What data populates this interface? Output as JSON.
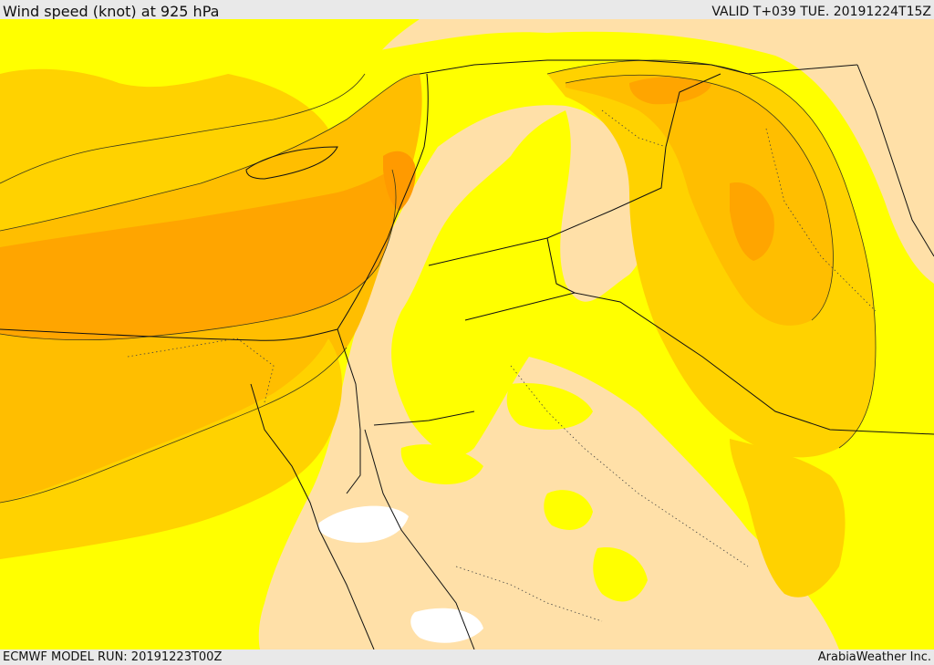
{
  "header": {
    "title": "Wind speed (knot) at 925 hPa",
    "valid_time": "VALID T+039 TUE. 20191224T15Z"
  },
  "footer": {
    "model_run": "ECMWF MODEL RUN: 20191223T00Z",
    "credit": "ArabiaWeather Inc."
  },
  "map": {
    "palette": {
      "land_low": "#ffe0a8",
      "band_yellow": "#ffff00",
      "band_gold": "#ffd200",
      "band_amber": "#ffbe00",
      "band_orange": "#ffa500",
      "calm": "#ffffff",
      "contour": "#3a3a1a",
      "border": "#111111"
    }
  }
}
